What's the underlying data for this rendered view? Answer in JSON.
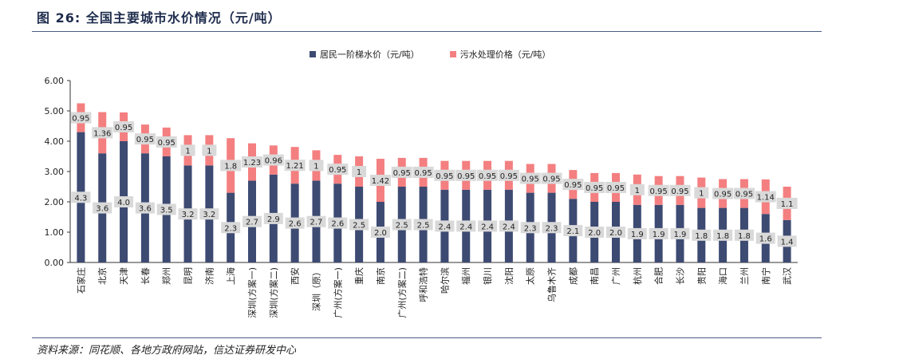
{
  "figure": {
    "label": "图 26:",
    "title": "全国主要城市水价情况（元/吨）",
    "source": "资料来源：同花顺、各地方政府网站，信达证券研发中心"
  },
  "colors": {
    "resident": "#3d4a72",
    "sewage": "#f47f80",
    "label_bg": "#d9d9d9"
  },
  "chart_data": {
    "type": "bar",
    "stacked": true,
    "legend_position": "top",
    "ylim": [
      0,
      6
    ],
    "yticks": [
      "0.00",
      "1.00",
      "2.00",
      "3.00",
      "4.00",
      "5.00",
      "6.00"
    ],
    "categories": [
      "石家庄",
      "北京",
      "天津",
      "长春",
      "郑州",
      "昆明",
      "济南",
      "上海",
      "深圳(方案一)",
      "深圳(方案二)",
      "西安",
      "深圳（原）",
      "广州(方案一)",
      "重庆",
      "南京",
      "广州(方案二)",
      "呼和浩特",
      "哈尔滨",
      "福州",
      "银川",
      "沈阳",
      "太原",
      "乌鲁木齐",
      "成都",
      "南昌",
      "广州",
      "杭州",
      "合肥",
      "长沙",
      "贵阳",
      "海口",
      "兰州",
      "南宁",
      "武汉"
    ],
    "series": [
      {
        "name": "居民一阶梯水价（元/吨）",
        "values": [
          4.3,
          3.6,
          4.0,
          3.6,
          3.5,
          3.2,
          3.2,
          2.3,
          2.7,
          2.9,
          2.6,
          2.7,
          2.6,
          2.5,
          2.0,
          2.5,
          2.5,
          2.4,
          2.4,
          2.4,
          2.4,
          2.3,
          2.3,
          2.1,
          2.0,
          2.0,
          1.9,
          1.9,
          1.9,
          1.8,
          1.8,
          1.8,
          1.6,
          1.4
        ],
        "labels": [
          "4.3",
          "3.6",
          "4.0",
          "3.6",
          "3.5",
          "3.2",
          "3.2",
          "2.3",
          "2.7",
          "2.9",
          "2.6",
          "2.7",
          "2.6",
          "2.5",
          "2.0",
          "2.5",
          "2.5",
          "2.4",
          "2.4",
          "2.4",
          "2.4",
          "2.3",
          "2.3",
          "2.1",
          "2.0",
          "2.0",
          "1.9",
          "1.9",
          "1.9",
          "1.8",
          "1.8",
          "1.8",
          "1.6",
          "1.4"
        ]
      },
      {
        "name": "污水处理价格（元/吨）",
        "values": [
          0.95,
          1.36,
          0.95,
          0.95,
          0.95,
          1,
          1,
          1.8,
          1.23,
          0.96,
          1.21,
          1,
          0.95,
          1,
          1.42,
          0.95,
          0.95,
          0.95,
          0.95,
          0.95,
          0.95,
          0.95,
          0.95,
          0.95,
          0.95,
          0.95,
          1,
          0.95,
          0.95,
          1,
          0.95,
          0.95,
          1.14,
          1.1
        ],
        "labels": [
          "0.95",
          "1.36",
          "0.95",
          "0.95",
          "0.95",
          "1",
          "1",
          "1.8",
          "1.23",
          "0.96",
          "1.21",
          "1",
          "0.95",
          "1",
          "1.42",
          "0.95",
          "0.95",
          "0.95",
          "0.95",
          "0.95",
          "0.95",
          "0.95",
          "0.95",
          "0.95",
          "0.95",
          "0.95",
          "1",
          "0.95",
          "0.95",
          "1",
          "0.95",
          "0.95",
          "1.14",
          "1.1"
        ]
      }
    ]
  }
}
